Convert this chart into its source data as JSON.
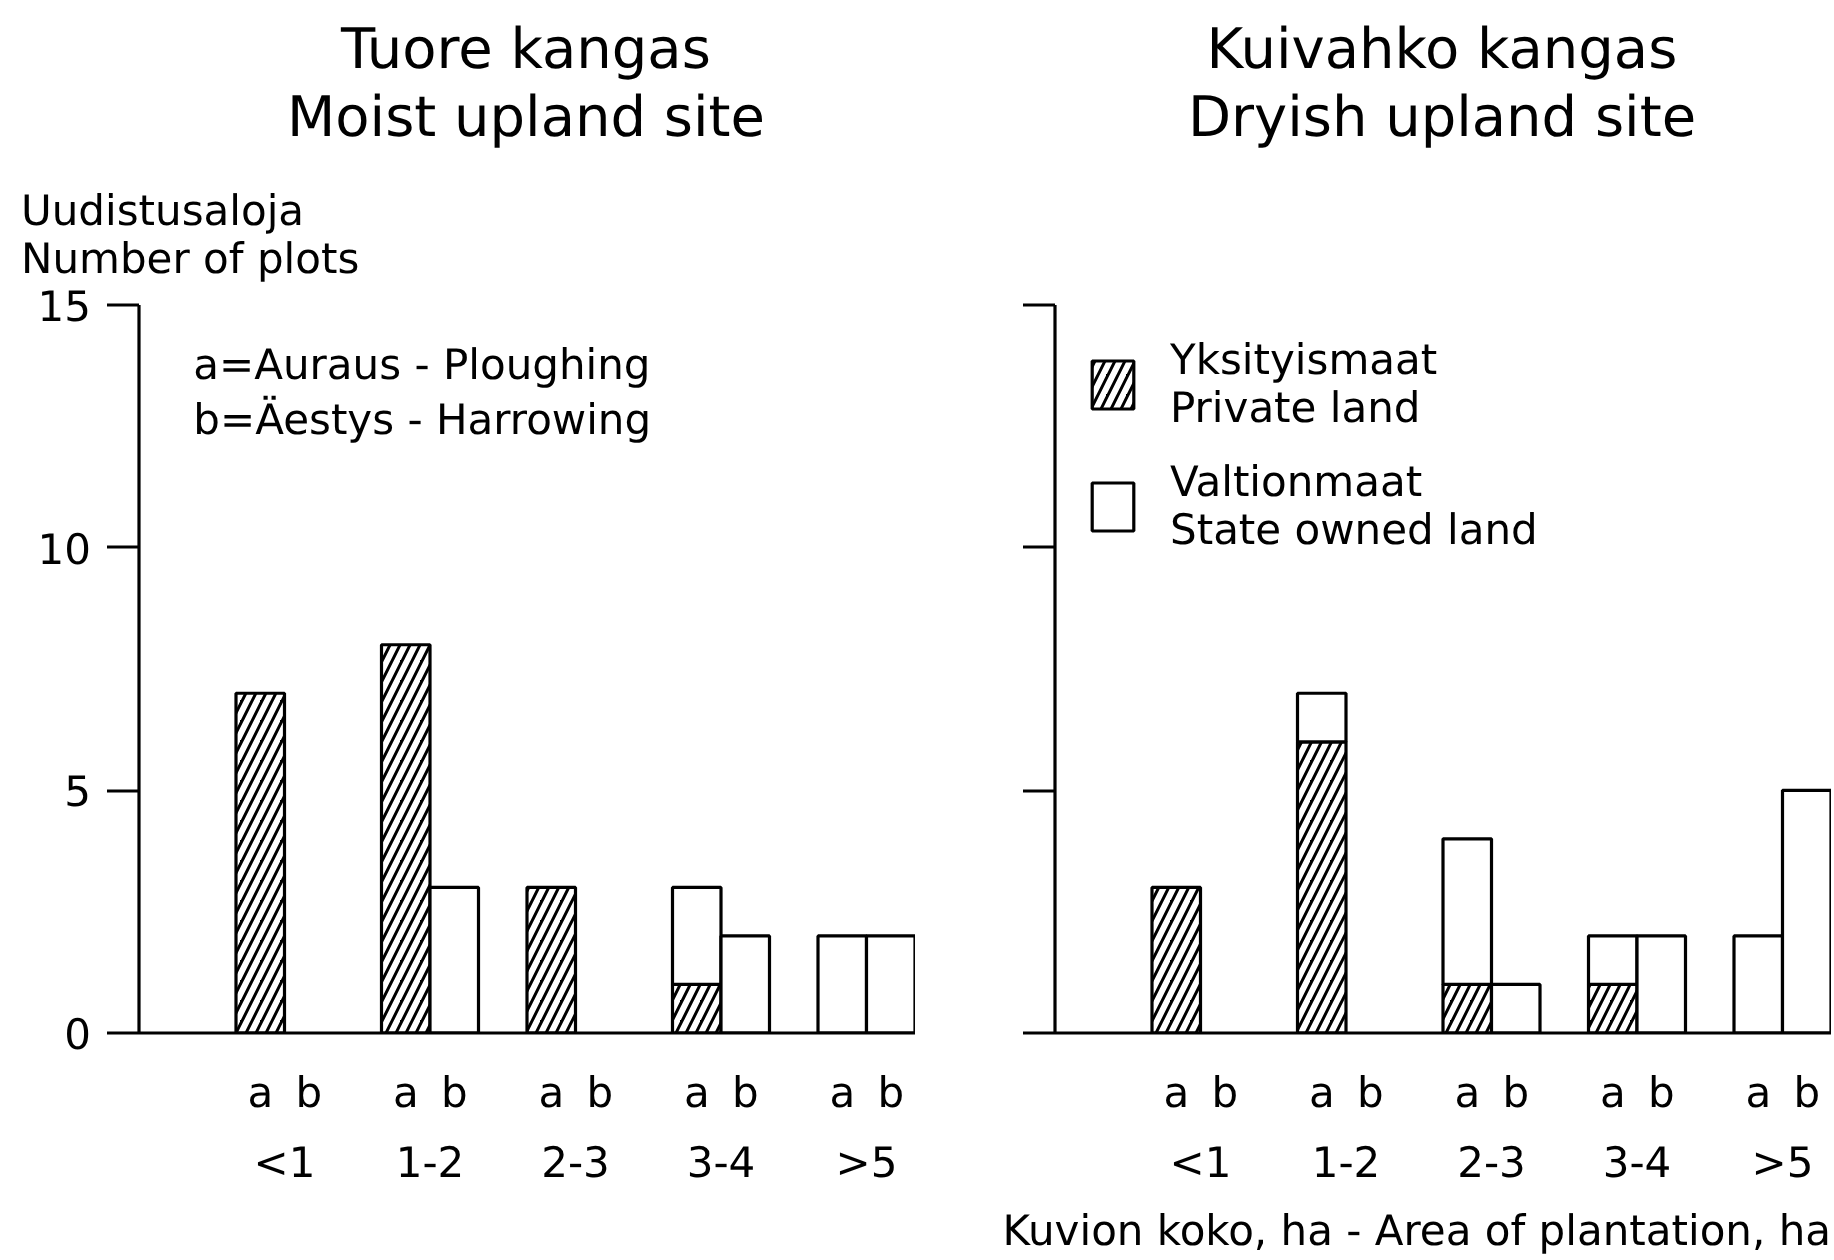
{
  "chart_data": [
    {
      "type": "bar",
      "stacked": true,
      "title": "Tuore kangas\nMoist upland site",
      "ylabel": "Uudistusaloja\nNumber of plots",
      "categories": [
        "a",
        "b",
        "a",
        "b",
        "a",
        "b",
        "a",
        "b",
        "a",
        "b"
      ],
      "series": [
        {
          "color": "#000000",
          "values": [
            7,
            0,
            8,
            0,
            3,
            0,
            1,
            0,
            0,
            0
          ]
        },
        {
          "color": "#ffffff",
          "values": [
            0,
            0,
            0,
            3,
            0,
            0,
            2,
            2,
            2,
            2
          ]
        }
      ],
      "ylim": [
        0,
        15
      ],
      "yticks": [
        0,
        5,
        10,
        15
      ],
      "annotations": [
        "a=Auraus - Ploughing",
        "b=Äestys - Harrowing",
        "<1",
        "1-2",
        "2-3",
        "3-4",
        ">5"
      ]
    },
    {
      "type": "bar",
      "stacked": true,
      "title": "Kuivahko kangas\nDryish upland site",
      "xlabel": "Kuvion koko, ha - Area of plantation, ha",
      "categories": [
        "a",
        "b",
        "a",
        "b",
        "a",
        "b",
        "a",
        "b",
        "a",
        "b"
      ],
      "series": [
        {
          "name": "Yksityismaat\nPrivate land",
          "color": "#000000",
          "values": [
            3,
            0,
            6,
            0,
            1,
            0,
            1,
            0,
            0,
            0
          ]
        },
        {
          "name": "Valtionmaat\nState owned land",
          "color": "#ffffff",
          "values": [
            0,
            0,
            1,
            0,
            3,
            1,
            1,
            2,
            2,
            5
          ]
        }
      ],
      "ylim": [
        0,
        15
      ],
      "yticks": [
        0,
        5,
        10,
        15
      ],
      "tick_labels": "x",
      "legend": "top left",
      "annotations": [
        "<1",
        "1-2",
        "2-3",
        "3-4",
        ">5"
      ]
    }
  ]
}
